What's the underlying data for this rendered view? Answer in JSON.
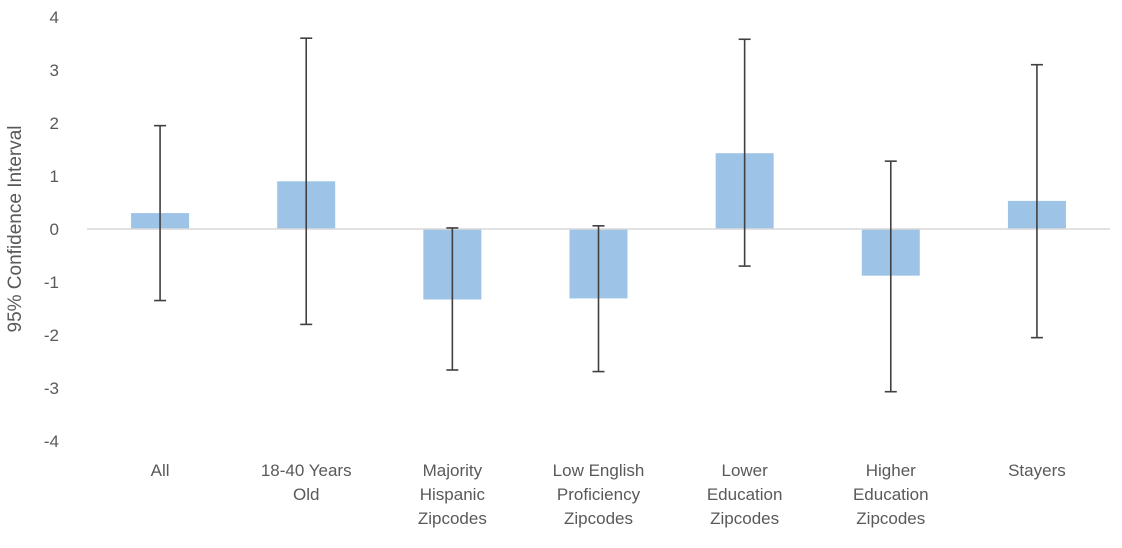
{
  "chart_data": {
    "type": "bar",
    "title": "",
    "xlabel": "",
    "ylabel": "95% Confidence Interval",
    "ylim": [
      -4,
      4
    ],
    "yticks": [
      4,
      3,
      2,
      1,
      0,
      -1,
      -2,
      -3,
      -4
    ],
    "grid": false,
    "legend": "none",
    "bar_color": "#9DC3E6",
    "errorbar_color": "#404040",
    "axis_color": "#D9D9D9",
    "categories": [
      [
        "All"
      ],
      [
        "18-40 Years",
        "Old"
      ],
      [
        "Majority",
        "Hispanic",
        "Zipcodes"
      ],
      [
        "Low English",
        "Proficiency",
        "Zipcodes"
      ],
      [
        "Lower",
        "Education",
        "Zipcodes"
      ],
      [
        "Higher",
        "Education",
        "Zipcodes"
      ],
      [
        "Stayers"
      ]
    ],
    "values": [
      0.3,
      0.9,
      -1.33,
      -1.31,
      1.43,
      -0.88,
      0.53
    ],
    "ci_upper": [
      1.95,
      3.6,
      0.02,
      0.06,
      3.58,
      1.28,
      3.1
    ],
    "ci_lower": [
      -1.35,
      -1.8,
      -2.66,
      -2.69,
      -0.7,
      -3.07,
      -2.05
    ]
  }
}
